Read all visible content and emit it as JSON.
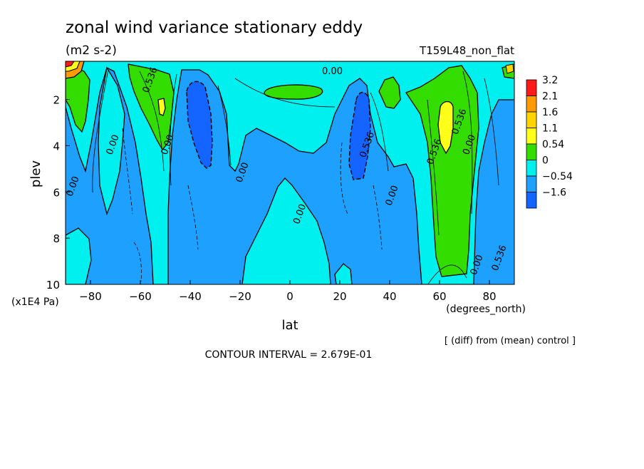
{
  "chart_data": {
    "type": "heatmap",
    "title": "zonal wind variance stationary eddy",
    "units": "(m2 s-2)",
    "run_label": "T159L48_non_flat",
    "xlabel": "lat",
    "x_unit": "(degrees_north)",
    "ylabel": "plev",
    "y_unit": "(x1E4 Pa)",
    "xlim": [
      -90,
      90
    ],
    "ylim": [
      10,
      0.35
    ],
    "x_ticks": [
      "-80",
      "-60",
      "-40",
      "-20",
      "0",
      "20",
      "40",
      "60",
      "80"
    ],
    "y_ticks": [
      "2",
      "4",
      "6",
      "8",
      "10"
    ],
    "legend": {
      "placement": "right",
      "levels": [
        "3.2",
        "2.1",
        "1.6",
        "1.1",
        "0.54",
        "0",
        "−0.54",
        "−1.6"
      ],
      "colors": [
        "#ff1a1a",
        "#ff9a00",
        "#ffd400",
        "#ffff1a",
        "#33dd00",
        "#00f0f0",
        "#1ea0ff",
        "#1464ff"
      ]
    },
    "contour_labels": [
      {
        "text": "0.536",
        "lat": -55,
        "plev": 1.2
      },
      {
        "text": "0.00",
        "lat": 17,
        "plev": 0.9
      },
      {
        "text": "0.00",
        "lat": -70,
        "plev": 4.0
      },
      {
        "text": "0.00",
        "lat": -48,
        "plev": 4.0
      },
      {
        "text": "0.00",
        "lat": -86,
        "plev": 5.8
      },
      {
        "text": "0.00",
        "lat": -18,
        "plev": 5.2
      },
      {
        "text": "0.00",
        "lat": 5,
        "plev": 7.0
      },
      {
        "text": "0.536",
        "lat": 32,
        "plev": 4.0
      },
      {
        "text": "0.00",
        "lat": 42,
        "plev": 6.2
      },
      {
        "text": "0.536",
        "lat": 59,
        "plev": 4.3
      },
      {
        "text": "0.536",
        "lat": 69,
        "plev": 3.0
      },
      {
        "text": "0.00",
        "lat": 73,
        "plev": 4.0
      },
      {
        "text": "0.00",
        "lat": 76,
        "plev": 9.2
      },
      {
        "text": "0.536",
        "lat": 85,
        "plev": 8.9
      }
    ],
    "footer": {
      "diff_note": "[ (diff) from (mean) control ]",
      "contour_interval": "CONTOUR INTERVAL = 2.679E-01"
    }
  }
}
